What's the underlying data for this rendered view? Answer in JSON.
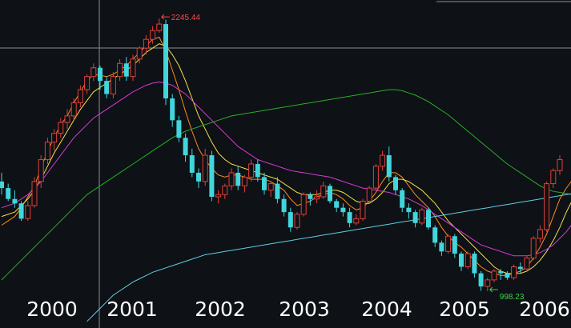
{
  "chart_data": {
    "type": "candlestick",
    "title": "",
    "xlabel": "",
    "ylabel": "",
    "x_tick_labels": [
      "2000",
      "2001",
      "2002",
      "2003",
      "2004",
      "2005",
      "2006"
    ],
    "y_range": [
      830,
      2330
    ],
    "grid": "crosshair",
    "colors": {
      "background": "#0e1115",
      "up": "#e0403a",
      "down": "#41d6dc",
      "ma_orange": "#ff8a1e",
      "ma_yellow": "#f2e14a",
      "ma_magenta": "#d63ad6",
      "ma_green": "#2cab2c",
      "ma_cyan": "#5ccfe6",
      "high_label": "#ff4a4a",
      "low_label": "#3fd24a",
      "crosshair": "#8c8f96"
    },
    "annotations": {
      "high": {
        "label": "2245.44",
        "value": 2245.44
      },
      "low": {
        "label": "998.23",
        "value": 998.23
      }
    },
    "candles": [
      [
        1500,
        1540,
        1440,
        1470
      ],
      [
        1470,
        1490,
        1410,
        1420
      ],
      [
        1420,
        1460,
        1380,
        1400
      ],
      [
        1400,
        1410,
        1320,
        1330
      ],
      [
        1330,
        1410,
        1320,
        1390
      ],
      [
        1390,
        1520,
        1380,
        1500
      ],
      [
        1500,
        1620,
        1470,
        1600
      ],
      [
        1600,
        1700,
        1580,
        1680
      ],
      [
        1680,
        1740,
        1640,
        1720
      ],
      [
        1720,
        1790,
        1700,
        1770
      ],
      [
        1770,
        1830,
        1740,
        1800
      ],
      [
        1800,
        1880,
        1780,
        1860
      ],
      [
        1860,
        1940,
        1840,
        1920
      ],
      [
        1920,
        1990,
        1900,
        1980
      ],
      [
        1980,
        2040,
        1960,
        2020
      ],
      [
        2020,
        2030,
        1920,
        1960
      ],
      [
        1960,
        1980,
        1880,
        1900
      ],
      [
        1900,
        2000,
        1880,
        1980
      ],
      [
        1980,
        2060,
        1960,
        2040
      ],
      [
        2040,
        2070,
        1960,
        1980
      ],
      [
        1980,
        2080,
        1960,
        2060
      ],
      [
        2060,
        2120,
        2040,
        2110
      ],
      [
        2110,
        2170,
        2080,
        2150
      ],
      [
        2150,
        2210,
        2130,
        2190
      ],
      [
        2190,
        2245.44,
        2180,
        2220
      ],
      [
        2220,
        2240,
        1850,
        1880
      ],
      [
        1880,
        1900,
        1750,
        1780
      ],
      [
        1780,
        1800,
        1680,
        1700
      ],
      [
        1700,
        1720,
        1590,
        1620
      ],
      [
        1620,
        1650,
        1520,
        1540
      ],
      [
        1540,
        1560,
        1470,
        1500
      ],
      [
        1500,
        1650,
        1480,
        1620
      ],
      [
        1620,
        1640,
        1410,
        1430
      ],
      [
        1430,
        1460,
        1400,
        1440
      ],
      [
        1440,
        1490,
        1420,
        1480
      ],
      [
        1480,
        1560,
        1460,
        1540
      ],
      [
        1540,
        1570,
        1460,
        1480
      ],
      [
        1480,
        1530,
        1450,
        1520
      ],
      [
        1520,
        1600,
        1500,
        1580
      ],
      [
        1580,
        1600,
        1500,
        1520
      ],
      [
        1520,
        1540,
        1440,
        1460
      ],
      [
        1460,
        1500,
        1430,
        1490
      ],
      [
        1490,
        1520,
        1400,
        1420
      ],
      [
        1420,
        1440,
        1340,
        1360
      ],
      [
        1360,
        1380,
        1270,
        1290
      ],
      [
        1290,
        1360,
        1280,
        1350
      ],
      [
        1350,
        1450,
        1340,
        1440
      ],
      [
        1440,
        1450,
        1390,
        1420
      ],
      [
        1420,
        1460,
        1400,
        1430
      ],
      [
        1430,
        1500,
        1420,
        1480
      ],
      [
        1480,
        1490,
        1400,
        1410
      ],
      [
        1410,
        1420,
        1360,
        1380
      ],
      [
        1380,
        1400,
        1340,
        1360
      ],
      [
        1360,
        1380,
        1290,
        1310
      ],
      [
        1310,
        1350,
        1300,
        1330
      ],
      [
        1330,
        1420,
        1320,
        1410
      ],
      [
        1410,
        1480,
        1400,
        1470
      ],
      [
        1470,
        1580,
        1460,
        1570
      ],
      [
        1570,
        1640,
        1550,
        1620
      ],
      [
        1620,
        1660,
        1500,
        1520
      ],
      [
        1520,
        1530,
        1440,
        1460
      ],
      [
        1460,
        1470,
        1360,
        1380
      ],
      [
        1380,
        1400,
        1330,
        1360
      ],
      [
        1360,
        1370,
        1290,
        1310
      ],
      [
        1310,
        1380,
        1300,
        1370
      ],
      [
        1370,
        1380,
        1280,
        1290
      ],
      [
        1290,
        1300,
        1200,
        1220
      ],
      [
        1220,
        1230,
        1160,
        1180
      ],
      [
        1180,
        1260,
        1170,
        1250
      ],
      [
        1250,
        1260,
        1150,
        1170
      ],
      [
        1170,
        1180,
        1090,
        1110
      ],
      [
        1110,
        1180,
        1100,
        1170
      ],
      [
        1170,
        1180,
        1060,
        1080
      ],
      [
        1080,
        1090,
        1000,
        1020
      ],
      [
        1020,
        1060,
        998.23,
        1050
      ],
      [
        1050,
        1100,
        1040,
        1090
      ],
      [
        1090,
        1100,
        1050,
        1080
      ],
      [
        1080,
        1090,
        1050,
        1060
      ],
      [
        1060,
        1120,
        1050,
        1110
      ],
      [
        1110,
        1130,
        1080,
        1100
      ],
      [
        1100,
        1160,
        1090,
        1150
      ],
      [
        1150,
        1250,
        1140,
        1240
      ],
      [
        1240,
        1300,
        1220,
        1280
      ],
      [
        1280,
        1500,
        1270,
        1490
      ],
      [
        1490,
        1560,
        1470,
        1550
      ],
      [
        1550,
        1620,
        1530,
        1600
      ]
    ],
    "moving_averages": [
      {
        "color_key": "ma_orange",
        "values": [
          1300,
          1320,
          1340,
          1380,
          1430,
          1480,
          1560,
          1640,
          1700,
          1760,
          1800,
          1860,
          1910,
          1960,
          1990,
          1985,
          1980,
          1990,
          2010,
          2030,
          2060,
          2090,
          2120,
          2150,
          2160,
          2100,
          2010,
          1920,
          1820,
          1730,
          1650,
          1600,
          1560,
          1530,
          1520,
          1530,
          1530,
          1520,
          1510,
          1510,
          1510,
          1500,
          1480,
          1460,
          1420,
          1390,
          1400,
          1410,
          1430,
          1440,
          1450,
          1440,
          1420,
          1390,
          1370,
          1380,
          1410,
          1450,
          1500,
          1540,
          1540,
          1520,
          1480,
          1440,
          1410,
          1380,
          1340,
          1290,
          1250,
          1220,
          1200,
          1170,
          1140,
          1110,
          1090,
          1080,
          1070,
          1070,
          1080,
          1090,
          1110,
          1150,
          1200,
          1260,
          1340,
          1420,
          1470,
          1510,
          1540
        ]
      },
      {
        "color_key": "ma_yellow",
        "values": [
          1340,
          1350,
          1360,
          1390,
          1420,
          1460,
          1510,
          1570,
          1630,
          1680,
          1730,
          1780,
          1830,
          1870,
          1910,
          1930,
          1950,
          1970,
          1990,
          2010,
          2030,
          2060,
          2090,
          2110,
          2130,
          2120,
          2080,
          2030,
          1960,
          1880,
          1800,
          1740,
          1680,
          1630,
          1600,
          1580,
          1570,
          1560,
          1550,
          1540,
          1530,
          1520,
          1510,
          1490,
          1470,
          1450,
          1440,
          1440,
          1440,
          1450,
          1460,
          1460,
          1450,
          1430,
          1410,
          1400,
          1400,
          1420,
          1450,
          1490,
          1510,
          1510,
          1500,
          1480,
          1460,
          1430,
          1400,
          1360,
          1320,
          1290,
          1260,
          1230,
          1200,
          1170,
          1140,
          1110,
          1090,
          1080,
          1080,
          1080,
          1090,
          1110,
          1140,
          1180,
          1230,
          1290,
          1360,
          1420,
          1470
        ]
      },
      {
        "color_key": "ma_magenta",
        "values": [
          1380,
          1390,
          1400,
          1420,
          1440,
          1470,
          1500,
          1540,
          1580,
          1620,
          1660,
          1700,
          1730,
          1760,
          1790,
          1810,
          1830,
          1850,
          1870,
          1890,
          1910,
          1925,
          1940,
          1950,
          1955,
          1950,
          1940,
          1920,
          1900,
          1870,
          1840,
          1810,
          1780,
          1750,
          1720,
          1690,
          1660,
          1640,
          1620,
          1600,
          1590,
          1580,
          1570,
          1560,
          1550,
          1545,
          1540,
          1535,
          1530,
          1525,
          1520,
          1510,
          1500,
          1490,
          1480,
          1470,
          1465,
          1460,
          1455,
          1450,
          1440,
          1430,
          1420,
          1405,
          1390,
          1370,
          1350,
          1330,
          1310,
          1290,
          1270,
          1250,
          1230,
          1210,
          1200,
          1190,
          1180,
          1170,
          1160,
          1160,
          1160,
          1165,
          1175,
          1190,
          1210,
          1240,
          1270,
          1310,
          1350
        ]
      },
      {
        "color_key": "ma_green",
        "values": [
          1050,
          1080,
          1110,
          1140,
          1170,
          1200,
          1230,
          1260,
          1290,
          1320,
          1350,
          1380,
          1410,
          1440,
          1460,
          1480,
          1500,
          1520,
          1540,
          1560,
          1580,
          1600,
          1620,
          1640,
          1660,
          1680,
          1700,
          1715,
          1730,
          1740,
          1750,
          1760,
          1770,
          1780,
          1790,
          1800,
          1805,
          1810,
          1815,
          1820,
          1825,
          1830,
          1835,
          1840,
          1845,
          1850,
          1855,
          1860,
          1865,
          1870,
          1875,
          1880,
          1885,
          1890,
          1895,
          1900,
          1905,
          1910,
          1915,
          1920,
          1920,
          1915,
          1905,
          1895,
          1880,
          1865,
          1845,
          1825,
          1805,
          1780,
          1755,
          1730,
          1705,
          1680,
          1655,
          1630,
          1605,
          1580,
          1560,
          1540,
          1520,
          1500,
          1480,
          1465,
          1455,
          1450,
          1445,
          1440,
          1440
        ]
      },
      {
        "color_key": "ma_cyan",
        "start_index": 13,
        "values": [
          860,
          890,
          920,
          950,
          980,
          1000,
          1020,
          1040,
          1055,
          1070,
          1085,
          1095,
          1105,
          1115,
          1125,
          1135,
          1145,
          1155,
          1165,
          1170,
          1175,
          1180,
          1185,
          1190,
          1195,
          1200,
          1205,
          1210,
          1215,
          1220,
          1225,
          1230,
          1235,
          1240,
          1245,
          1250,
          1255,
          1260,
          1265,
          1270,
          1275,
          1280,
          1285,
          1290,
          1295,
          1300,
          1305,
          1310,
          1315,
          1320,
          1325,
          1330,
          1335,
          1340,
          1345,
          1350,
          1355,
          1360,
          1365,
          1370,
          1375,
          1380,
          1385,
          1390,
          1395,
          1400,
          1405,
          1410,
          1415,
          1420,
          1425,
          1430,
          1435,
          1440,
          1445,
          1450
        ]
      }
    ]
  }
}
